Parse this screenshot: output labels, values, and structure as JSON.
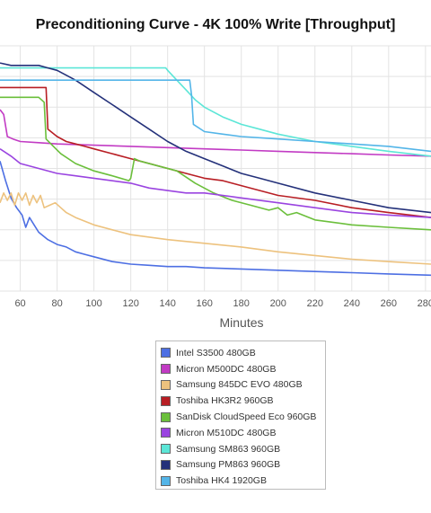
{
  "chart_data": {
    "type": "line",
    "title": "Preconditioning Curve - 4K 100% Write [Throughput]",
    "xlabel": "Minutes",
    "ylabel": "",
    "x_ticks": [
      60,
      80,
      100,
      120,
      140,
      160,
      180,
      200,
      220,
      240,
      260,
      280
    ],
    "xlim": [
      49,
      283
    ],
    "ylim": [
      0,
      100
    ],
    "grid": true,
    "legend_position": "bottom-center",
    "series": [
      {
        "name": "Intel S3500 480GB",
        "color": "#4d6fe3",
        "points": [
          [
            49,
            53
          ],
          [
            52,
            45
          ],
          [
            55,
            38
          ],
          [
            58,
            34
          ],
          [
            61,
            31
          ],
          [
            63,
            26
          ],
          [
            65,
            30
          ],
          [
            70,
            24
          ],
          [
            75,
            21
          ],
          [
            80,
            19
          ],
          [
            85,
            18
          ],
          [
            90,
            16
          ],
          [
            95,
            15
          ],
          [
            100,
            14
          ],
          [
            110,
            12
          ],
          [
            120,
            11
          ],
          [
            130,
            10.5
          ],
          [
            140,
            10
          ],
          [
            150,
            10
          ],
          [
            160,
            9.5
          ],
          [
            180,
            9
          ],
          [
            200,
            8.5
          ],
          [
            220,
            8
          ],
          [
            240,
            7.5
          ],
          [
            260,
            7
          ],
          [
            283,
            6.5
          ]
        ]
      },
      {
        "name": "Micron M500DC 480GB",
        "color": "#c23bc4",
        "points": [
          [
            49,
            74
          ],
          [
            51,
            72
          ],
          [
            53,
            63
          ],
          [
            56,
            62
          ],
          [
            60,
            61
          ],
          [
            70,
            60.5
          ],
          [
            80,
            60
          ],
          [
            100,
            59.5
          ],
          [
            120,
            59
          ],
          [
            140,
            58.5
          ],
          [
            160,
            58
          ],
          [
            180,
            57.5
          ],
          [
            200,
            57
          ],
          [
            220,
            56.5
          ],
          [
            240,
            56
          ],
          [
            260,
            55.5
          ],
          [
            283,
            55
          ]
        ]
      },
      {
        "name": "Samsung 845DC EVO 480GB",
        "color": "#edc27e",
        "points": [
          [
            49,
            36
          ],
          [
            51,
            40
          ],
          [
            53,
            37
          ],
          [
            55,
            40
          ],
          [
            57,
            35
          ],
          [
            59,
            40
          ],
          [
            61,
            37
          ],
          [
            63,
            40
          ],
          [
            65,
            35
          ],
          [
            67,
            39
          ],
          [
            69,
            36
          ],
          [
            71,
            39
          ],
          [
            73,
            34
          ],
          [
            76,
            35
          ],
          [
            79,
            36
          ],
          [
            82,
            34
          ],
          [
            85,
            32
          ],
          [
            90,
            30
          ],
          [
            100,
            27
          ],
          [
            110,
            25
          ],
          [
            120,
            23
          ],
          [
            140,
            21
          ],
          [
            160,
            19.5
          ],
          [
            180,
            18
          ],
          [
            200,
            16
          ],
          [
            220,
            14.5
          ],
          [
            240,
            13
          ],
          [
            260,
            12
          ],
          [
            283,
            11
          ]
        ]
      },
      {
        "name": "Toshiba HK3R2 960GB",
        "color": "#b81e24",
        "points": [
          [
            49,
            83
          ],
          [
            60,
            83
          ],
          [
            74,
            83
          ],
          [
            75,
            66
          ],
          [
            80,
            63
          ],
          [
            85,
            61
          ],
          [
            90,
            60
          ],
          [
            95,
            59
          ],
          [
            100,
            58
          ],
          [
            110,
            56
          ],
          [
            120,
            54
          ],
          [
            125,
            53
          ],
          [
            130,
            52
          ],
          [
            140,
            50
          ],
          [
            150,
            48
          ],
          [
            160,
            46
          ],
          [
            170,
            45
          ],
          [
            180,
            43
          ],
          [
            200,
            39
          ],
          [
            220,
            37
          ],
          [
            240,
            34
          ],
          [
            260,
            32
          ],
          [
            283,
            30
          ]
        ]
      },
      {
        "name": "SanDisk CloudSpeed Eco 960GB",
        "color": "#6bbf3b",
        "points": [
          [
            49,
            79
          ],
          [
            70,
            79
          ],
          [
            73,
            77
          ],
          [
            74,
            62
          ],
          [
            78,
            59
          ],
          [
            82,
            56
          ],
          [
            90,
            52
          ],
          [
            100,
            49
          ],
          [
            110,
            47
          ],
          [
            119,
            45
          ],
          [
            120,
            46
          ],
          [
            122,
            54
          ],
          [
            125,
            53
          ],
          [
            135,
            51
          ],
          [
            145,
            49
          ],
          [
            155,
            44
          ],
          [
            165,
            40
          ],
          [
            175,
            37
          ],
          [
            185,
            35
          ],
          [
            195,
            33
          ],
          [
            200,
            34
          ],
          [
            205,
            31
          ],
          [
            210,
            32
          ],
          [
            220,
            29
          ],
          [
            240,
            27
          ],
          [
            260,
            26
          ],
          [
            283,
            25
          ]
        ]
      },
      {
        "name": "Micron M510DC 480GB",
        "color": "#9a44e0",
        "points": [
          [
            49,
            58
          ],
          [
            55,
            55
          ],
          [
            60,
            52
          ],
          [
            70,
            50
          ],
          [
            80,
            48
          ],
          [
            90,
            47
          ],
          [
            100,
            46
          ],
          [
            120,
            44
          ],
          [
            130,
            42
          ],
          [
            140,
            41
          ],
          [
            150,
            40
          ],
          [
            160,
            40
          ],
          [
            180,
            38
          ],
          [
            200,
            36
          ],
          [
            220,
            34
          ],
          [
            240,
            32
          ],
          [
            260,
            31
          ],
          [
            283,
            30
          ]
        ]
      },
      {
        "name": "Samsung SM863 960GB",
        "color": "#5ce6d7",
        "points": [
          [
            49,
            91
          ],
          [
            100,
            91
          ],
          [
            139,
            91
          ],
          [
            140,
            90
          ],
          [
            145,
            86
          ],
          [
            150,
            82
          ],
          [
            155,
            78
          ],
          [
            160,
            75
          ],
          [
            170,
            71
          ],
          [
            180,
            68
          ],
          [
            190,
            66
          ],
          [
            200,
            64
          ],
          [
            220,
            61
          ],
          [
            240,
            59
          ],
          [
            260,
            57
          ],
          [
            283,
            55
          ]
        ]
      },
      {
        "name": "Samsung PM863 960GB",
        "color": "#24317a",
        "points": [
          [
            49,
            93
          ],
          [
            55,
            92
          ],
          [
            60,
            92
          ],
          [
            70,
            92
          ],
          [
            75,
            91
          ],
          [
            80,
            90
          ],
          [
            90,
            86
          ],
          [
            100,
            81
          ],
          [
            110,
            76
          ],
          [
            120,
            71
          ],
          [
            130,
            66
          ],
          [
            140,
            61
          ],
          [
            150,
            57
          ],
          [
            160,
            54
          ],
          [
            170,
            51
          ],
          [
            180,
            48
          ],
          [
            190,
            46
          ],
          [
            200,
            44
          ],
          [
            220,
            40
          ],
          [
            240,
            37
          ],
          [
            260,
            34
          ],
          [
            283,
            32
          ]
        ]
      },
      {
        "name": "Toshiba HK4 1920GB",
        "color": "#53b5e8",
        "points": [
          [
            49,
            86
          ],
          [
            60,
            86
          ],
          [
            80,
            86
          ],
          [
            100,
            86
          ],
          [
            120,
            86
          ],
          [
            140,
            86
          ],
          [
            152,
            86
          ],
          [
            153,
            80
          ],
          [
            154,
            68
          ],
          [
            160,
            65
          ],
          [
            170,
            64
          ],
          [
            180,
            63
          ],
          [
            200,
            62
          ],
          [
            220,
            61
          ],
          [
            240,
            60
          ],
          [
            260,
            59
          ],
          [
            283,
            57
          ]
        ]
      }
    ]
  }
}
